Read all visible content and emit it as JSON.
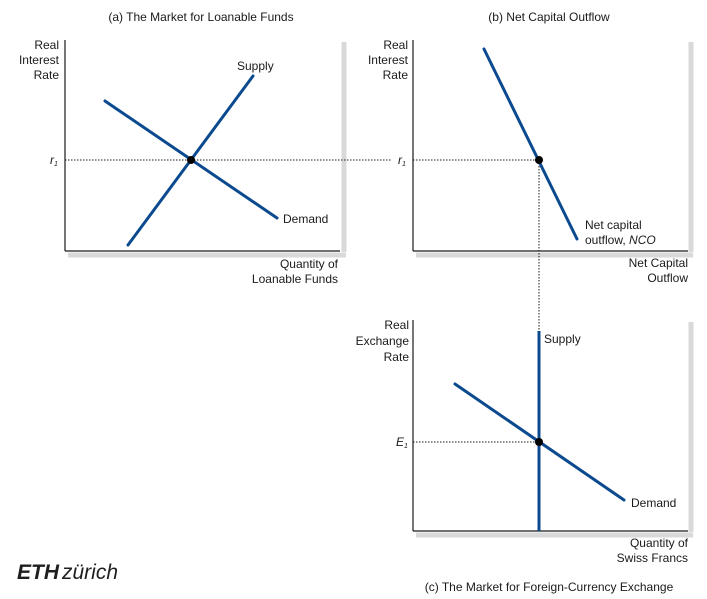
{
  "panel_a": {
    "title": "(a) The Market for Loanable Funds",
    "y_label": [
      "Real",
      "Interest",
      "Rate"
    ],
    "x_label": [
      "Quantity of",
      "Loanable Funds"
    ],
    "r1": "r",
    "r1_sub": "1",
    "supply_label": "Supply",
    "demand_label": "Demand"
  },
  "panel_b": {
    "title": "(b) Net Capital Outflow",
    "y_label": [
      "Real",
      "Interest",
      "Rate"
    ],
    "x_label": [
      "Net Capital",
      "Outflow"
    ],
    "r1": "r",
    "r1_sub": "1",
    "nco_label_1": "Net capital",
    "nco_label_2": "outflow, ",
    "nco_label_italic": "NCO"
  },
  "panel_c": {
    "title": "(c) The Market for Foreign-Currency Exchange",
    "y_label": [
      "Real",
      "Exchange",
      "Rate"
    ],
    "x_label": [
      "Quantity of",
      "Swiss Francs"
    ],
    "e1": "E",
    "e1_sub": "1",
    "supply_label": "Supply",
    "demand_label": "Demand"
  },
  "logo": {
    "part1": "ETH",
    "part2": "zürich"
  },
  "colors": {
    "curve": "#0b4a8f",
    "axis": "#1a1a1a",
    "shadow": "#d9d9d9"
  }
}
